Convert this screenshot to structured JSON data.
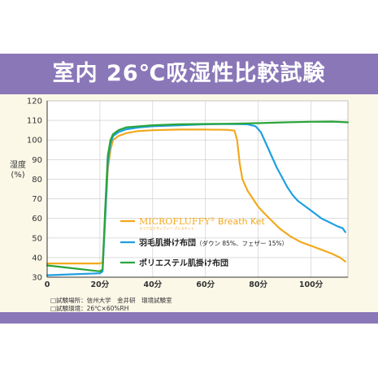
{
  "title": "室内 26℃吸湿性比較試験",
  "notes": [
    "□試験場所：信州大学　金井研　環境試験室",
    "□試験環境：26℃×60%RH"
  ],
  "colors": {
    "background": "#fbf8e8",
    "title_bar": "#8a77b8",
    "microfluffy": "#f2a91e",
    "feather": "#1fa0e0",
    "polyester": "#2aa53a",
    "grid": "#c8c8c8",
    "axis": "#333333"
  },
  "chart_data": {
    "type": "line",
    "title": "室内 26℃吸湿性比較試験",
    "ylabel": "湿度\n(%)",
    "xlabel": "",
    "x_unit": "分",
    "xlim": [
      0,
      114
    ],
    "ylim": [
      30,
      120
    ],
    "x_ticks": [
      0,
      20,
      40,
      60,
      80,
      100
    ],
    "x_tick_labels": [
      "0",
      "20分",
      "40分",
      "60分",
      "80分",
      "100分"
    ],
    "y_ticks": [
      30,
      40,
      50,
      60,
      70,
      80,
      90,
      100,
      110,
      120
    ],
    "grid": true,
    "legend_position": "bottom-left inside",
    "series": [
      {
        "key": "microfluffy",
        "name_main": "MICROFLUFFY",
        "name_reg": "®",
        "name_tail": " Breath Ket",
        "name_sub": "マイクロフラッフィー ブレスケット",
        "color": "#f2a91e",
        "points": [
          [
            0,
            37
          ],
          [
            10,
            37
          ],
          [
            20,
            37
          ],
          [
            21,
            37.5
          ],
          [
            22,
            60
          ],
          [
            23,
            85
          ],
          [
            24,
            95
          ],
          [
            25,
            100
          ],
          [
            27,
            102
          ],
          [
            30,
            103.5
          ],
          [
            34,
            104.5
          ],
          [
            40,
            105
          ],
          [
            50,
            105.3
          ],
          [
            60,
            105.3
          ],
          [
            68,
            105.2
          ],
          [
            71,
            104.8
          ],
          [
            72,
            100
          ],
          [
            73,
            88
          ],
          [
            74,
            80
          ],
          [
            76,
            74
          ],
          [
            78,
            70
          ],
          [
            80,
            66
          ],
          [
            82,
            63
          ],
          [
            85,
            59
          ],
          [
            88,
            55
          ],
          [
            92,
            51
          ],
          [
            96,
            48
          ],
          [
            100,
            46
          ],
          [
            104,
            44
          ],
          [
            108,
            42
          ],
          [
            111,
            40
          ],
          [
            113,
            38
          ]
        ]
      },
      {
        "key": "feather",
        "name": "羽毛肌掛け布団",
        "name_note": "（ダウン 85%、フェザー 15%）",
        "color": "#1fa0e0",
        "points": [
          [
            0,
            31
          ],
          [
            10,
            31.5
          ],
          [
            20,
            32
          ],
          [
            21,
            33
          ],
          [
            22,
            60
          ],
          [
            23,
            88
          ],
          [
            24,
            98
          ],
          [
            25,
            102
          ],
          [
            27,
            104
          ],
          [
            30,
            105.5
          ],
          [
            35,
            106.5
          ],
          [
            40,
            107
          ],
          [
            50,
            107.5
          ],
          [
            60,
            108
          ],
          [
            70,
            108.2
          ],
          [
            76,
            108
          ],
          [
            79,
            107
          ],
          [
            81,
            104
          ],
          [
            83,
            98
          ],
          [
            85,
            92
          ],
          [
            87,
            86
          ],
          [
            89,
            81
          ],
          [
            91,
            76
          ],
          [
            93,
            72
          ],
          [
            95,
            69
          ],
          [
            98,
            66
          ],
          [
            101,
            63
          ],
          [
            104,
            60
          ],
          [
            107,
            58
          ],
          [
            110,
            56
          ],
          [
            112,
            55
          ],
          [
            113,
            53
          ]
        ]
      },
      {
        "key": "polyester",
        "name": "ポリエステル肌掛け布団",
        "color": "#2aa53a",
        "points": [
          [
            0,
            36
          ],
          [
            10,
            34.5
          ],
          [
            20,
            33
          ],
          [
            21,
            34
          ],
          [
            22,
            65
          ],
          [
            23,
            92
          ],
          [
            24,
            100
          ],
          [
            25,
            103
          ],
          [
            27,
            105
          ],
          [
            30,
            106.5
          ],
          [
            35,
            107
          ],
          [
            40,
            107.5
          ],
          [
            50,
            108
          ],
          [
            60,
            108.2
          ],
          [
            70,
            108.3
          ],
          [
            80,
            108.6
          ],
          [
            90,
            109
          ],
          [
            100,
            109.3
          ],
          [
            108,
            109.4
          ],
          [
            111,
            109.2
          ],
          [
            114,
            109
          ]
        ]
      }
    ]
  }
}
